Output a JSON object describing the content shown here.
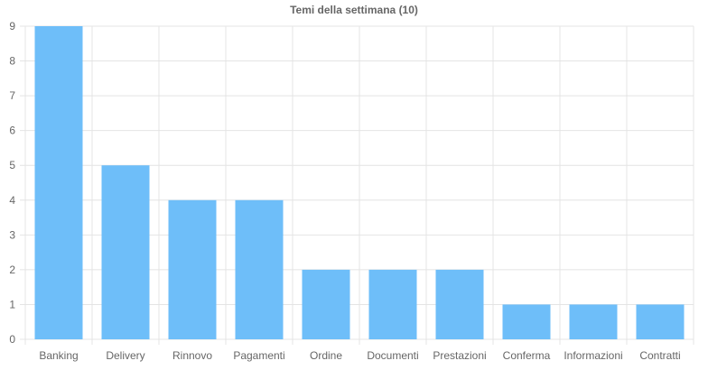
{
  "chart_data": {
    "type": "bar",
    "title": "Temi della settimana (10)",
    "categories": [
      "Banking",
      "Delivery",
      "Rinnovo",
      "Pagamenti",
      "Ordine",
      "Documenti",
      "Prestazioni",
      "Conferma",
      "Informazioni",
      "Contratti"
    ],
    "values": [
      9,
      5,
      4,
      4,
      2,
      2,
      2,
      1,
      1,
      1
    ],
    "ylim": [
      0,
      9
    ],
    "yticks": [
      "0",
      "1",
      "2",
      "3",
      "4",
      "5",
      "6",
      "7",
      "8",
      "9"
    ],
    "xlabel": "",
    "ylabel": "",
    "grid": true,
    "bar_color": "#6ebef9",
    "grid_color": "#e4e4e4"
  }
}
